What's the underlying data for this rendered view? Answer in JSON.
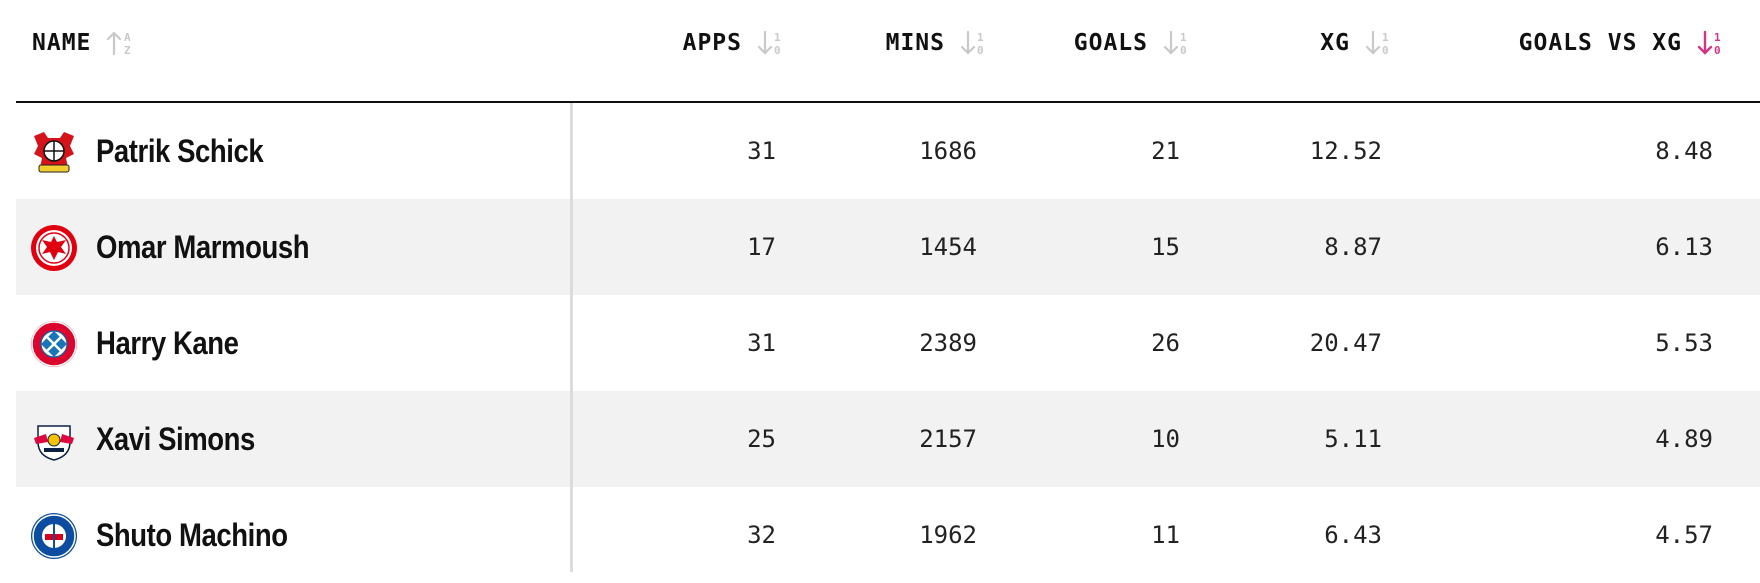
{
  "columns": {
    "name": "NAME",
    "apps": "APPS",
    "mins": "MINS",
    "goals": "GOALS",
    "xg": "XG",
    "goals_vs_xg": "GOALS VS XG",
    "active_sort": "goals_vs_xg",
    "active_sort_color": "#d63384",
    "inactive_sort_color": "#c9c9c9"
  },
  "rows": [
    {
      "club_icon": "bayer-leverkusen-crest-icon",
      "name": "Patrik Schick",
      "apps": "31",
      "mins": "1686",
      "goals": "21",
      "xg": "12.52",
      "goals_vs_xg": "8.48"
    },
    {
      "club_icon": "eintracht-frankfurt-crest-icon",
      "name": "Omar Marmoush",
      "apps": "17",
      "mins": "1454",
      "goals": "15",
      "xg": "8.87",
      "goals_vs_xg": "6.13"
    },
    {
      "club_icon": "bayern-munchen-crest-icon",
      "name": "Harry Kane",
      "apps": "31",
      "mins": "2389",
      "goals": "26",
      "xg": "20.47",
      "goals_vs_xg": "5.53"
    },
    {
      "club_icon": "rb-leipzig-crest-icon",
      "name": "Xavi Simons",
      "apps": "25",
      "mins": "2157",
      "goals": "10",
      "xg": "5.11",
      "goals_vs_xg": "4.89"
    },
    {
      "club_icon": "holstein-kiel-crest-icon",
      "name": "Shuto Machino",
      "apps": "32",
      "mins": "1962",
      "goals": "11",
      "xg": "6.43",
      "goals_vs_xg": "4.57"
    }
  ]
}
